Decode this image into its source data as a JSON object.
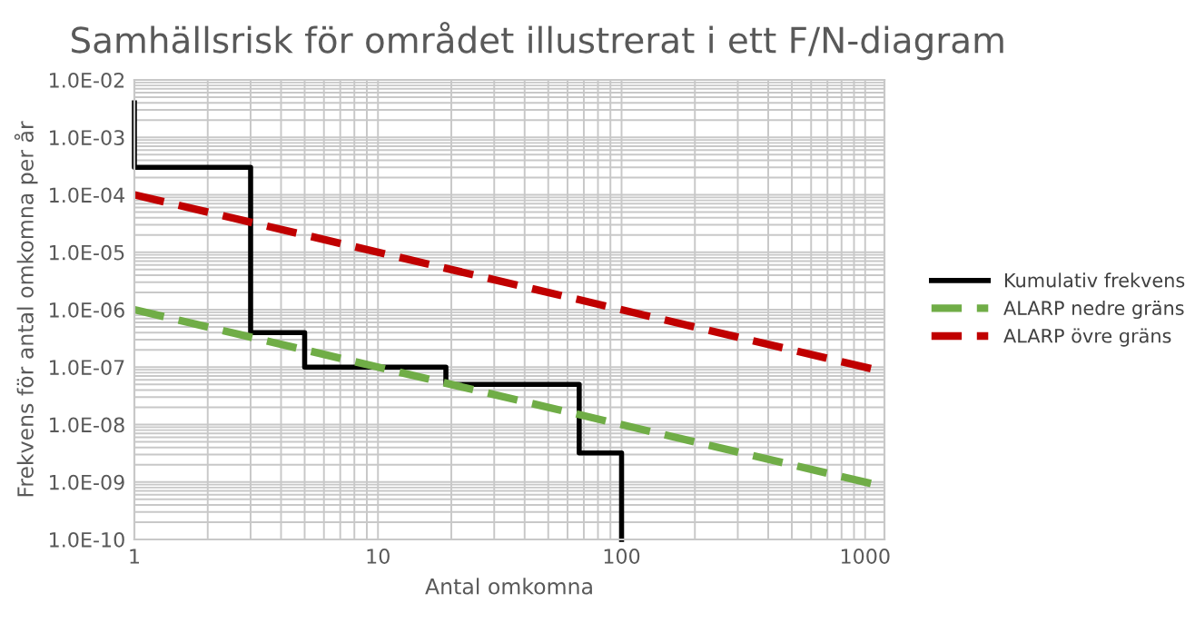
{
  "chart_data": {
    "type": "line",
    "title": "Samhällsrisk för området illustrerat i ett F/N-diagram",
    "xlabel": "Antal omkomna",
    "ylabel": "Frekvens för antal omkomna per år",
    "log": "xy",
    "grid": true,
    "legend": "right",
    "marker": "none",
    "xlim": [
      1,
      1200
    ],
    "xticks": [
      1,
      10,
      100,
      1000
    ],
    "ylim": [
      1e-10,
      0.01
    ],
    "yticks": [
      {
        "value": 1e-10,
        "label": "1.0E-10"
      },
      {
        "value": 1e-09,
        "label": "1.0E-09"
      },
      {
        "value": 1e-08,
        "label": "1.0E-08"
      },
      {
        "value": 1e-07,
        "label": "1.0E-07"
      },
      {
        "value": 1e-06,
        "label": "1.0E-06"
      },
      {
        "value": 1e-05,
        "label": "1.0E-05"
      },
      {
        "value": 0.0001,
        "label": "1.0E-04"
      },
      {
        "value": 0.001,
        "label": "1.0E-03"
      },
      {
        "value": 0.01,
        "label": "1.0E-02"
      }
    ],
    "series": [
      {
        "name": "Kumulativ frekvens",
        "color": "#000000",
        "line_style": "solid",
        "x": [
          1,
          1,
          3,
          3,
          5,
          5,
          19,
          19,
          67,
          67,
          100,
          100
        ],
        "values": [
          0.004,
          0.0003,
          0.0003,
          4e-07,
          4e-07,
          1e-07,
          1e-07,
          5e-08,
          5e-08,
          3.2e-09,
          3.2e-09,
          1e-10
        ]
      },
      {
        "name": "ALARP nedre gräns",
        "color": "#70ad47",
        "line_style": "dashed",
        "x": [
          1,
          1200
        ],
        "values": [
          1e-06,
          8.3e-10
        ]
      },
      {
        "name": "ALARP övre gräns",
        "color": "#c00000",
        "line_style": "dashed",
        "x": [
          1,
          1200
        ],
        "values": [
          0.0001,
          8.3e-08
        ]
      }
    ]
  }
}
